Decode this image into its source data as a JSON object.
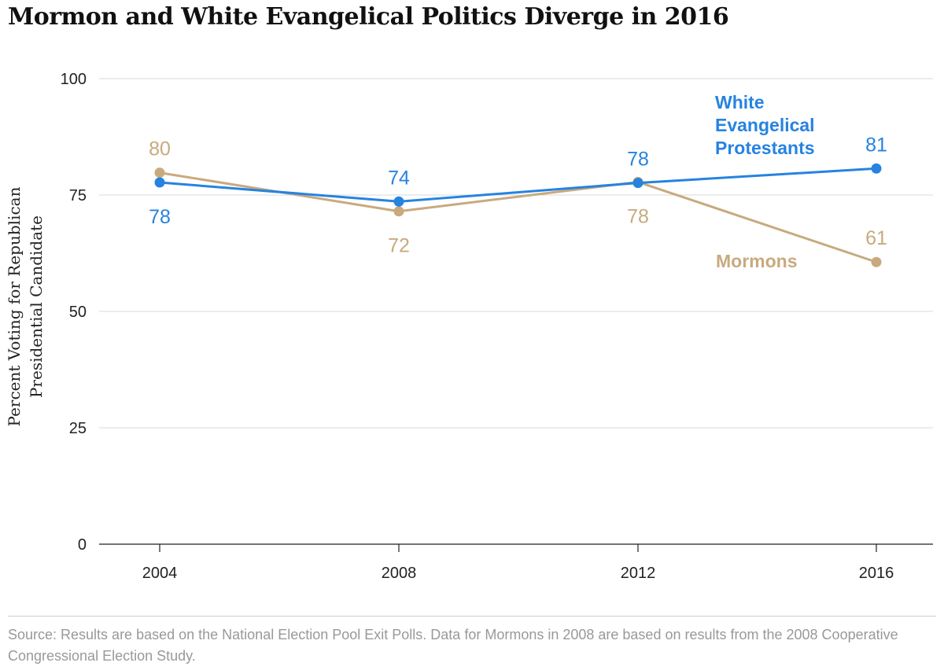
{
  "title": "Mormon and White Evangelical Politics Diverge in 2016",
  "source": "Source: Results are based on the National Election Pool Exit Polls. Data for Mormons in 2008 are based on results from the 2008 Cooperative Congressional Election Study.",
  "chart_data": {
    "type": "line",
    "title": "Mormon and White Evangelical Politics Diverge in 2016",
    "xlabel": "",
    "ylabel": "Percent Voting for Republican Presidential Candidate",
    "ylabel_lines": [
      "Percent Voting for Republican",
      "Presidential Candidate"
    ],
    "x": [
      "2004",
      "2008",
      "2012",
      "2016"
    ],
    "ylim": [
      0,
      100
    ],
    "yticks": [
      0,
      25,
      50,
      75,
      100
    ],
    "grid": true,
    "legend": "direct-labels",
    "series": [
      {
        "name": "White Evangelical Protestants",
        "name_lines": [
          "White",
          "Evangelical",
          "Protestants"
        ],
        "color": "#2683e0",
        "values": [
          77.7,
          73.6,
          77.6,
          80.7
        ],
        "labels": [
          "78",
          "74",
          "78",
          "81"
        ],
        "label_pos": [
          "below",
          "above",
          "above",
          "above"
        ]
      },
      {
        "name": "Mormons",
        "name_lines": [
          "Mormons"
        ],
        "color": "#c8aa7e",
        "values": [
          79.8,
          71.5,
          77.8,
          60.6
        ],
        "labels": [
          "80",
          "72",
          "78",
          "61"
        ],
        "label_pos": [
          "above",
          "below",
          "below",
          "above"
        ]
      }
    ]
  }
}
